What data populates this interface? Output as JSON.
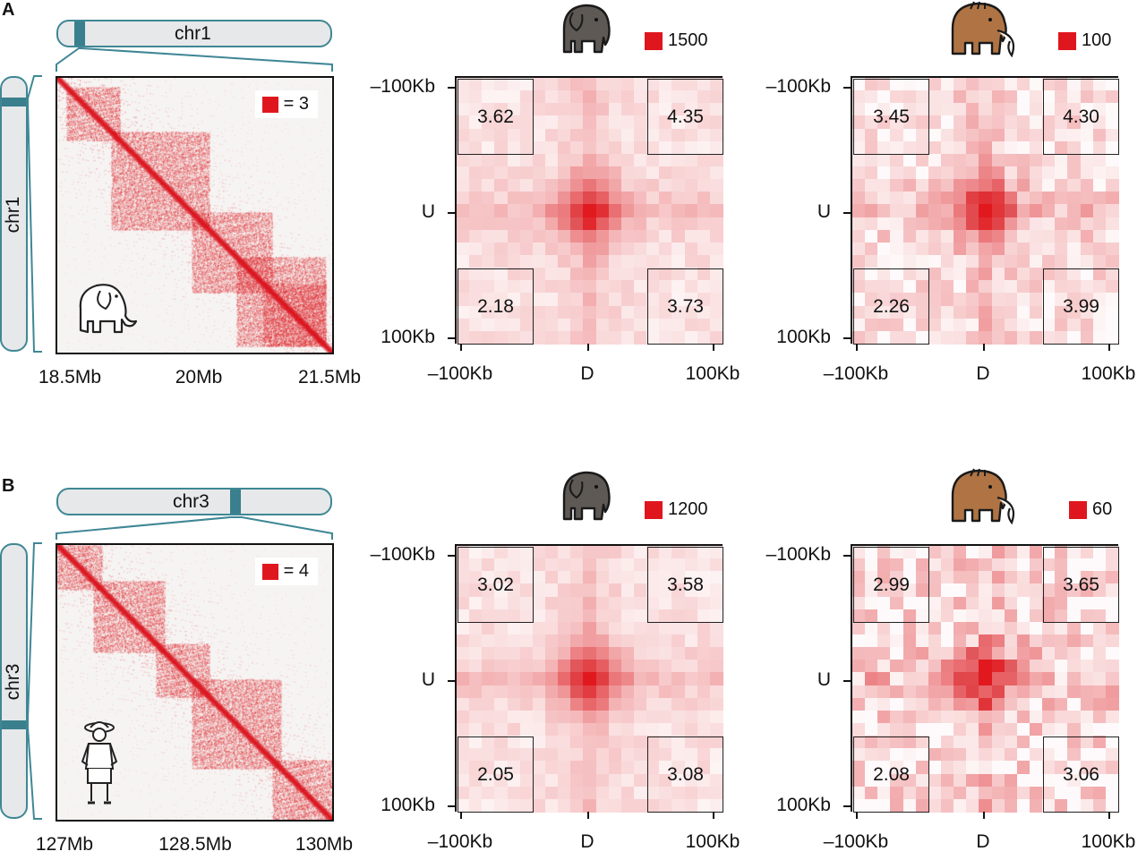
{
  "colors": {
    "accent_red": "#e0161e",
    "chrom_band": "#3a7f8d",
    "chrom_fill": "#e6e8ea"
  },
  "panels": [
    {
      "letter": "A",
      "chrom_name": "chr1",
      "band_fraction": 0.06,
      "hic": {
        "legend_text": "= 3",
        "x_ticks": [
          "18.5Mb",
          "20Mb",
          "21.5Mb"
        ],
        "icon": "elephant-outline-icon"
      },
      "apa": [
        {
          "icon": "elephant-icon",
          "legend_text": "1500",
          "corner_values": {
            "top_left": "3.62",
            "top_right": "4.35",
            "bottom_left": "2.18",
            "bottom_right": "3.73"
          },
          "y_ticks": [
            "–100Kb",
            "U",
            "100Kb"
          ],
          "x_ticks": [
            "–100Kb",
            "D",
            "100Kb"
          ],
          "noise": 0.15
        },
        {
          "icon": "mammoth-icon",
          "legend_text": "100",
          "corner_values": {
            "top_left": "3.45",
            "top_right": "4.30",
            "bottom_left": "2.26",
            "bottom_right": "3.99"
          },
          "y_ticks": [
            "–100Kb",
            "U",
            "100Kb"
          ],
          "x_ticks": [
            "–100Kb",
            "D",
            "100Kb"
          ],
          "noise": 0.35
        }
      ]
    },
    {
      "letter": "B",
      "chrom_name": "chr3",
      "band_fraction": 0.6,
      "hic": {
        "legend_text": "= 4",
        "x_ticks": [
          "127Mb",
          "128.5Mb",
          "130Mb"
        ],
        "icon": "explorer-person-icon"
      },
      "apa": [
        {
          "icon": "elephant-icon",
          "legend_text": "1200",
          "corner_values": {
            "top_left": "3.02",
            "top_right": "3.58",
            "bottom_left": "2.05",
            "bottom_right": "3.08"
          },
          "y_ticks": [
            "–100Kb",
            "U",
            "100Kb"
          ],
          "x_ticks": [
            "–100Kb",
            "D",
            "100Kb"
          ],
          "noise": 0.15
        },
        {
          "icon": "mammoth-icon",
          "legend_text": "60",
          "corner_values": {
            "top_left": "2.99",
            "top_right": "3.65",
            "bottom_left": "2.08",
            "bottom_right": "3.06"
          },
          "y_ticks": [
            "–100Kb",
            "U",
            "100Kb"
          ],
          "x_ticks": [
            "–100Kb",
            "D",
            "100Kb"
          ],
          "noise": 0.5
        }
      ]
    }
  ]
}
